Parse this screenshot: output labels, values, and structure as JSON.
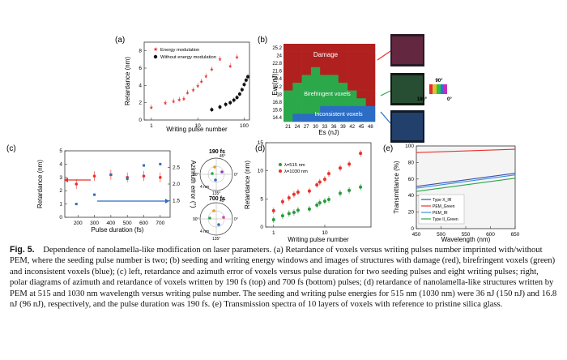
{
  "panel_labels": {
    "a": "(a)",
    "b": "(b)",
    "c": "(c)",
    "d": "(d)",
    "e": "(e)"
  },
  "chart_data": [
    {
      "id": "a",
      "type": "scatter",
      "xlabel": "Writing pulse number",
      "ylabel": "Retardance (nm)",
      "xscale": "log",
      "xlim": [
        0.7,
        130
      ],
      "ylim": [
        0,
        9
      ],
      "xticks": [
        1,
        10,
        100
      ],
      "yticks": [
        0,
        2,
        4,
        6,
        8
      ],
      "legend_position": "top-left",
      "series": [
        {
          "name": "Energy modulation",
          "color": "#e8322b",
          "marker": "star",
          "points": [
            [
              1,
              1.5
            ],
            [
              2,
              2.0
            ],
            [
              3,
              2.2
            ],
            [
              4,
              2.4
            ],
            [
              5,
              2.5
            ],
            [
              6,
              3.2
            ],
            [
              8,
              3.5
            ],
            [
              10,
              4.0
            ],
            [
              12,
              4.5
            ],
            [
              15,
              5.1
            ],
            [
              20,
              5.9
            ],
            [
              30,
              7.1
            ],
            [
              50,
              6.3
            ],
            [
              70,
              7.3
            ]
          ]
        },
        {
          "name": "Without energy modulation",
          "color": "#111111",
          "marker": "dot",
          "points": [
            [
              20,
              1.2
            ],
            [
              30,
              1.5
            ],
            [
              40,
              1.8
            ],
            [
              50,
              2.0
            ],
            [
              60,
              2.3
            ],
            [
              70,
              2.6
            ],
            [
              80,
              3.0
            ],
            [
              90,
              3.5
            ],
            [
              100,
              4.1
            ],
            [
              110,
              4.6
            ],
            [
              120,
              5.0
            ]
          ]
        }
      ]
    },
    {
      "id": "b",
      "type": "heatmap",
      "xlabel": "Es (nJ)",
      "ylabel": "Ew (nJ)",
      "x_categories": [
        "21",
        "24",
        "27",
        "30",
        "33",
        "36",
        "39",
        "42",
        "45",
        "48"
      ],
      "y_categories": [
        "25.2",
        "24",
        "22.8",
        "21.6",
        "20.4",
        "19.2",
        "18",
        "16.8",
        "15.6",
        "14.4"
      ],
      "region_labels": [
        "Damage",
        "Birefringent voxels",
        "Inconsistent voxels"
      ],
      "region_colors": {
        "damage": "#b0201e",
        "birefringent": "#2aa84a",
        "inconsistent": "#2b6cc4"
      },
      "grid": [
        [
          "d",
          "d",
          "d",
          "d",
          "d",
          "d",
          "d",
          "d",
          "d",
          "d"
        ],
        [
          "d",
          "d",
          "d",
          "d",
          "d",
          "d",
          "d",
          "d",
          "d",
          "d"
        ],
        [
          "d",
          "d",
          "d",
          "d",
          "d",
          "d",
          "d",
          "d",
          "d",
          "d"
        ],
        [
          "d",
          "d",
          "d",
          "b",
          "d",
          "d",
          "d",
          "d",
          "d",
          "d"
        ],
        [
          "d",
          "d",
          "b",
          "b",
          "b",
          "b",
          "d",
          "d",
          "d",
          "d"
        ],
        [
          "d",
          "b",
          "b",
          "b",
          "b",
          "b",
          "b",
          "d",
          "d",
          "d"
        ],
        [
          "b",
          "b",
          "b",
          "b",
          "b",
          "b",
          "b",
          "b",
          "d",
          "d"
        ],
        [
          "b",
          "b",
          "b",
          "b",
          "b",
          "b",
          "b",
          "b",
          "b",
          "d"
        ],
        [
          "b",
          "b",
          "b",
          "b",
          "i",
          "i",
          "i",
          "i",
          "i",
          "i"
        ],
        [
          "b",
          "i",
          "i",
          "i",
          "i",
          "i",
          "i",
          "i",
          "i",
          "i"
        ]
      ],
      "colorwheel_labels": [
        "90°",
        "180°",
        "0°"
      ]
    },
    {
      "id": "c",
      "type": "scatter",
      "xlabel": "Pulse duration (fs)",
      "ylabel": "Retardance (nm)",
      "y2label": "Azimuth error (°)",
      "xlim": [
        120,
        760
      ],
      "ylim": [
        0,
        5
      ],
      "y2lim": [
        1.0,
        3.0
      ],
      "xticks": [
        100,
        200,
        300,
        400,
        500,
        600,
        700
      ],
      "yticks": [
        0,
        1,
        2,
        3,
        4,
        5
      ],
      "y2ticks": [
        1.5,
        2.0,
        2.5
      ],
      "series": [
        {
          "name": "Retardance",
          "color": "#e8322b",
          "points": [
            [
              190,
              2.5
            ],
            [
              300,
              3.1
            ],
            [
              400,
              3.2
            ],
            [
              500,
              3.0
            ],
            [
              600,
              3.1
            ],
            [
              700,
              3.0
            ]
          ]
        },
        {
          "name": "Azimuth error",
          "color": "#2b6cc4",
          "points": [
            [
              190,
              1.0
            ],
            [
              300,
              1.7
            ],
            [
              400,
              3.2
            ],
            [
              500,
              2.9
            ],
            [
              600,
              3.9
            ],
            [
              700,
              4.0
            ]
          ]
        }
      ],
      "polar_titles": [
        "190 fs",
        "700 fs"
      ],
      "polar_angles": [
        "45°",
        "0°",
        "135°",
        "90°",
        "4 nm"
      ]
    },
    {
      "id": "d",
      "type": "scatter",
      "xlabel": "Writing pulse number",
      "ylabel": "Retardance (nm)",
      "xscale": "log",
      "xlim": [
        0.7,
        80
      ],
      "ylim": [
        0,
        15
      ],
      "xticks": [
        1,
        10,
        100
      ],
      "yticks": [
        0,
        5,
        10,
        15
      ],
      "legend_position": "top-left",
      "series": [
        {
          "name": "λ=515 nm",
          "color": "#2a9a3c",
          "points": [
            [
              1,
              1.3
            ],
            [
              1.5,
              2.0
            ],
            [
              2,
              2.4
            ],
            [
              2.5,
              2.6
            ],
            [
              3,
              3.0
            ],
            [
              5,
              3.2
            ],
            [
              7,
              3.9
            ],
            [
              8,
              4.3
            ],
            [
              10,
              4.6
            ],
            [
              12,
              4.9
            ],
            [
              20,
              6.0
            ],
            [
              30,
              6.5
            ],
            [
              50,
              7.1
            ]
          ]
        },
        {
          "name": "λ=1030 nm",
          "color": "#e8322b",
          "points": [
            [
              1,
              2.9
            ],
            [
              1.5,
              4.5
            ],
            [
              2,
              5.2
            ],
            [
              2.5,
              5.8
            ],
            [
              3,
              6.2
            ],
            [
              5,
              6.4
            ],
            [
              7,
              7.5
            ],
            [
              8,
              8.0
            ],
            [
              10,
              8.5
            ],
            [
              12,
              9.5
            ],
            [
              20,
              10.5
            ],
            [
              30,
              11.2
            ],
            [
              50,
              13.1
            ]
          ]
        }
      ]
    },
    {
      "id": "e",
      "type": "line",
      "xlabel": "Wavelength (nm)",
      "ylabel": "Transmittance (%)",
      "xlim": [
        450,
        650
      ],
      "ylim": [
        0,
        100
      ],
      "xticks": [
        450,
        500,
        550,
        600,
        650
      ],
      "yticks": [
        0,
        20,
        40,
        60,
        80,
        100
      ],
      "legend_position": "bottom-left",
      "series": [
        {
          "name": "Type X_IR",
          "color": "#3a4fb0",
          "x": [
            450,
            650
          ],
          "y": [
            51,
            67
          ]
        },
        {
          "name": "PEM_Green",
          "color": "#e8322b",
          "x": [
            450,
            650
          ],
          "y": [
            92,
            96
          ]
        },
        {
          "name": "PEM_IR",
          "color": "#3a8fe0",
          "x": [
            450,
            650
          ],
          "y": [
            49,
            65
          ]
        },
        {
          "name": "Type II_Green",
          "color": "#2aa84a",
          "x": [
            450,
            650
          ],
          "y": [
            45,
            61
          ]
        }
      ]
    }
  ],
  "caption": {
    "label": "Fig. 5.",
    "text": "Dependence of nanolamella-like modification on laser parameters. (a) Retardance of voxels versus writing pulses number imprinted with/without PEM, where the seeding pulse number is two; (b) seeding and writing energy windows and images of structures with damage (red), birefringent voxels (green) and inconsistent voxels (blue); (c) left, retardance and azimuth error of voxels versus pulse duration for two seeding pulses and eight writing pulses; right, polar diagrams of azimuth and retardance of voxels written by 190 fs (top) and 700 fs (bottom) pulses; (d) retardance of nanolamella-like structures written by PEM at 515 and 1030 nm wavelength versus writing pulse number. The seeding and writing pulse energies for 515 nm (1030 nm) were 36 nJ (150 nJ) and 16.8 nJ (96 nJ), respectively, and the pulse duration was 190 fs. (e) Transmission spectra of 10 layers of voxels with reference to pristine silica glass."
  }
}
